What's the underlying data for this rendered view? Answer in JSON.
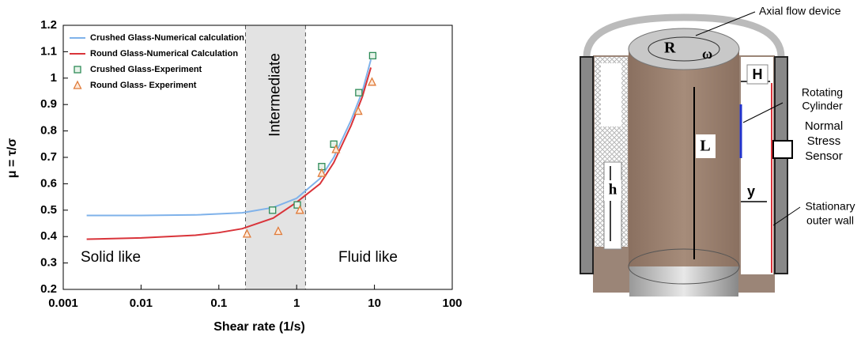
{
  "chart_data": {
    "type": "line",
    "x_label": "Shear rate (1/s)",
    "y_label": "μ = τ/σ",
    "log_x": true,
    "xlim": [
      0.001,
      100
    ],
    "xticks": [
      0.001,
      0.01,
      0.1,
      1,
      10,
      100
    ],
    "ylim": [
      0.2,
      1.2
    ],
    "yticks": [
      0.2,
      0.3,
      0.4,
      0.5,
      0.6,
      0.7,
      0.8,
      0.9,
      1,
      1.1,
      1.2
    ],
    "shaded_region": {
      "x": [
        0.22,
        1.3
      ],
      "label": "Intermediate",
      "color": "#e3e3e3"
    },
    "annotations": [
      "Solid like",
      "Fluid like"
    ],
    "legend": "upper left",
    "series": [
      {
        "name": "Crushed Glass-Numerical calculation",
        "type": "line",
        "color": "#7fb2ea",
        "x": [
          0.002,
          0.01,
          0.05,
          0.2,
          0.5,
          1,
          2,
          3,
          5,
          7,
          9
        ],
        "values": [
          0.48,
          0.48,
          0.482,
          0.49,
          0.51,
          0.545,
          0.62,
          0.7,
          0.84,
          0.95,
          1.07
        ]
      },
      {
        "name": "Round Glass-Numerical Calculation",
        "type": "line",
        "color": "#d9343a",
        "x": [
          0.002,
          0.01,
          0.05,
          0.1,
          0.2,
          0.5,
          1,
          2,
          3,
          5,
          7,
          9
        ],
        "values": [
          0.39,
          0.395,
          0.405,
          0.415,
          0.43,
          0.47,
          0.53,
          0.6,
          0.68,
          0.82,
          0.93,
          1.04
        ]
      },
      {
        "name": "Crushed Glass-Experiment",
        "type": "scatter",
        "marker": "square",
        "color": "#2e8b57",
        "x": [
          0.49,
          1.02,
          2.1,
          3,
          6.3,
          9.5
        ],
        "values": [
          0.5,
          0.52,
          0.665,
          0.75,
          0.945,
          1.085
        ]
      },
      {
        "name": "Round Glass- Experiment",
        "type": "scatter",
        "marker": "triangle",
        "color": "#e07b39",
        "x": [
          0.23,
          0.58,
          1.1,
          2.1,
          3.2,
          6.2,
          9.3
        ],
        "values": [
          0.41,
          0.42,
          0.5,
          0.64,
          0.73,
          0.875,
          0.985
        ]
      }
    ]
  },
  "diagram": {
    "labels": {
      "axial": "Axial flow device",
      "R": "R",
      "omega": "ω",
      "H": "H",
      "rotating": [
        "Rotating",
        "Cylinder"
      ],
      "sensor": [
        "Normal",
        "Stress",
        "Sensor"
      ],
      "L": "L",
      "h": "h",
      "y": "y",
      "wall": [
        "Stationary",
        "outer wall"
      ]
    }
  }
}
